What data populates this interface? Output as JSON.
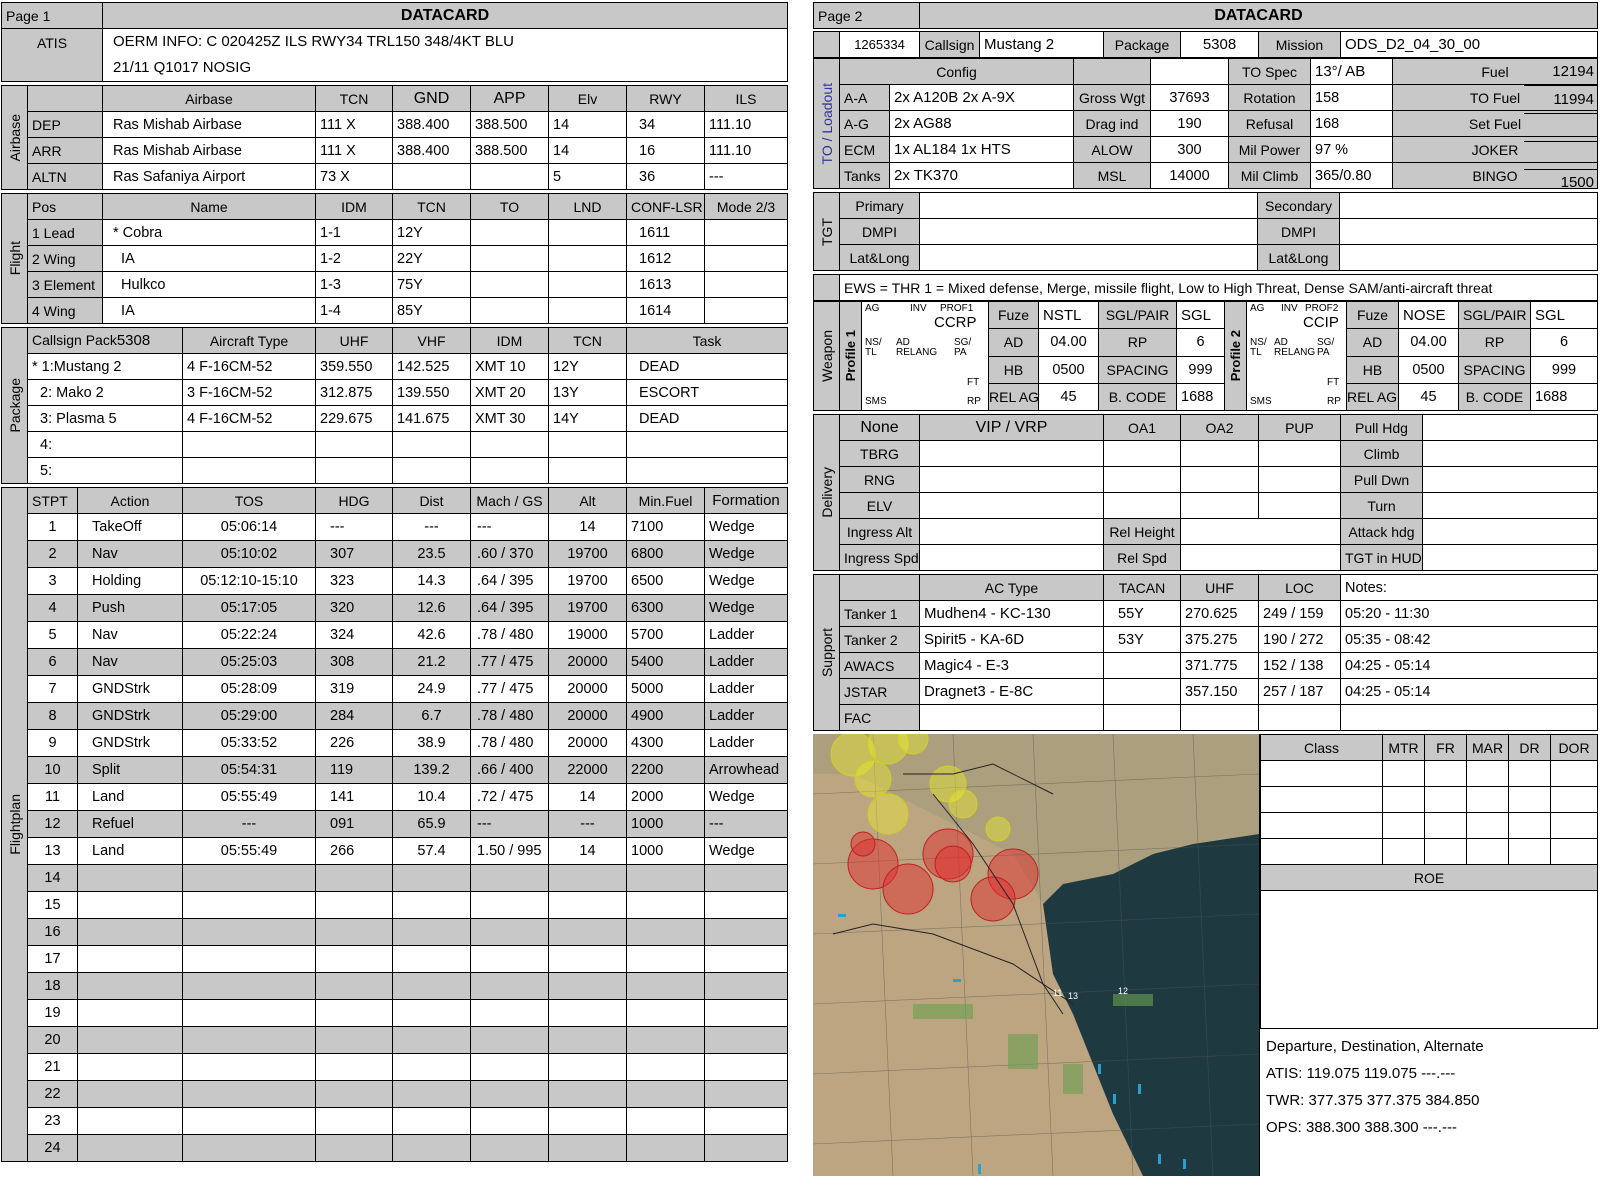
{
  "page1": {
    "page_label": "Page 1",
    "title": "DATACARD",
    "atis": {
      "label": "ATIS",
      "line1": "OERM INFO: C 020425Z ILS RWY34 TRL150 348/4KT BLU",
      "line2": "21/11 Q1017  NOSIG"
    },
    "airbase": {
      "side_label": "Airbase",
      "headers": [
        "Airbase",
        "TCN",
        "GND",
        "APP",
        "Elv",
        "RWY",
        "ILS"
      ],
      "rows": [
        [
          "DEP",
          "Ras Mishab Airbase",
          "111 X",
          "388.400",
          "388.500",
          "14",
          "34",
          "111.10"
        ],
        [
          "ARR",
          "Ras Mishab Airbase",
          "111 X",
          "388.400",
          "388.500",
          "14",
          "16",
          "111.10"
        ],
        [
          "ALTN",
          "Ras Safaniya Airport",
          "73 X",
          "",
          "",
          "5",
          "36",
          "---"
        ]
      ]
    },
    "flight": {
      "side_label": "Flight",
      "headers": [
        "Pos",
        "Name",
        "IDM",
        "TCN",
        "TO",
        "LND",
        "CONF-LSR",
        "Mode 2/3"
      ],
      "rows": [
        [
          "1 Lead",
          "* Cobra",
          "1-1",
          "12Y",
          "",
          "",
          "1611",
          ""
        ],
        [
          "2 Wing",
          "  IA",
          "1-2",
          "22Y",
          "",
          "",
          "1612",
          ""
        ],
        [
          "3 Element",
          "  Hulkco",
          "1-3",
          "75Y",
          "",
          "",
          "1613",
          ""
        ],
        [
          "4 Wing",
          "  IA",
          "1-4",
          "85Y",
          "",
          "",
          "1614",
          ""
        ]
      ]
    },
    "package": {
      "side_label": "Package",
      "callsign_pack_label": "Callsign Pack",
      "callsign_pack_value": "5308",
      "headers": [
        "Aircraft Type",
        "UHF",
        "VHF",
        "IDM",
        "TCN",
        "Task"
      ],
      "rows": [
        [
          "* 1:Mustang 2",
          "4 F-16CM-52",
          "359.550",
          "142.525",
          "XMT 10",
          "12Y",
          "DEAD"
        ],
        [
          "  2: Mako 2",
          "3 F-16CM-52",
          "312.875",
          "139.550",
          "XMT 20",
          "13Y",
          "ESCORT"
        ],
        [
          "  3: Plasma 5",
          "4 F-16CM-52",
          "229.675",
          "141.675",
          "XMT 30",
          "14Y",
          "DEAD"
        ],
        [
          "  4:",
          "",
          "",
          "",
          "",
          "",
          ""
        ],
        [
          "  5:",
          "",
          "",
          "",
          "",
          "",
          ""
        ]
      ]
    },
    "flightplan": {
      "side_label": "Flightplan",
      "headers": [
        "STPT",
        "Action",
        "TOS",
        "HDG",
        "Dist",
        "Mach / GS",
        "Alt",
        "Min.Fuel",
        "Formation"
      ],
      "rows": [
        [
          "1",
          "TakeOff",
          "05:06:14",
          "---",
          "---",
          "---",
          "14",
          "7100",
          "Wedge"
        ],
        [
          "2",
          "Nav",
          "05:10:02",
          "307",
          "23.5",
          ".60 / 370",
          "19700",
          "6800",
          "Wedge"
        ],
        [
          "3",
          "Holding",
          "05:12:10-15:10",
          "323",
          "14.3",
          ".64 / 395",
          "19700",
          "6500",
          "Wedge"
        ],
        [
          "4",
          "Push",
          "05:17:05",
          "320",
          "12.6",
          ".64 / 395",
          "19700",
          "6300",
          "Wedge"
        ],
        [
          "5",
          "Nav",
          "05:22:24",
          "324",
          "42.6",
          ".78 / 480",
          "19000",
          "5700",
          "Ladder"
        ],
        [
          "6",
          "Nav",
          "05:25:03",
          "308",
          "21.2",
          ".77 / 475",
          "20000",
          "5400",
          "Ladder"
        ],
        [
          "7",
          "GNDStrk",
          "05:28:09",
          "319",
          "24.9",
          ".77 / 475",
          "20000",
          "5000",
          "Ladder"
        ],
        [
          "8",
          "GNDStrk",
          "05:29:00",
          "284",
          "6.7",
          ".78 / 480",
          "20000",
          "4900",
          "Ladder"
        ],
        [
          "9",
          "GNDStrk",
          "05:33:52",
          "226",
          "38.9",
          ".78 / 480",
          "20000",
          "4300",
          "Ladder"
        ],
        [
          "10",
          "Split",
          "05:54:31",
          "119",
          "139.2",
          ".66 / 400",
          "22000",
          "2200",
          "Arrowhead"
        ],
        [
          "11",
          "Land",
          "05:55:49",
          "141",
          "10.4",
          ".72 / 475",
          "14",
          "2000",
          "Wedge"
        ],
        [
          "12",
          "Refuel",
          "---",
          "091",
          "65.9",
          "---",
          "---",
          "1000",
          "---"
        ],
        [
          "13",
          "Land",
          "05:55:49",
          "266",
          "57.4",
          "1.50 / 995",
          "14",
          "1000",
          "Wedge"
        ],
        [
          "14",
          "",
          "",
          "",
          "",
          "",
          "",
          "",
          ""
        ],
        [
          "15",
          "",
          "",
          "",
          "",
          "",
          "",
          "",
          ""
        ],
        [
          "16",
          "",
          "",
          "",
          "",
          "",
          "",
          "",
          ""
        ],
        [
          "17",
          "",
          "",
          "",
          "",
          "",
          "",
          "",
          ""
        ],
        [
          "18",
          "",
          "",
          "",
          "",
          "",
          "",
          "",
          ""
        ],
        [
          "19",
          "",
          "",
          "",
          "",
          "",
          "",
          "",
          ""
        ],
        [
          "20",
          "",
          "",
          "",
          "",
          "",
          "",
          "",
          ""
        ],
        [
          "21",
          "",
          "",
          "",
          "",
          "",
          "",
          "",
          ""
        ],
        [
          "22",
          "",
          "",
          "",
          "",
          "",
          "",
          "",
          ""
        ],
        [
          "23",
          "",
          "",
          "",
          "",
          "",
          "",
          "",
          ""
        ],
        [
          "24",
          "",
          "",
          "",
          "",
          "",
          "",
          "",
          ""
        ]
      ]
    }
  },
  "page2": {
    "page_label": "Page 2",
    "title": "DATACARD",
    "id": "1265334",
    "callsign_label": "Callsign",
    "callsign": "Mustang 2",
    "package_label": "Package",
    "package": "5308",
    "mission_label": "Mission",
    "mission": "ODS_D2_04_30_00",
    "loadout": {
      "side_label": "TO / Loadout",
      "config_label": "Config",
      "rows": [
        {
          "k": "A-A",
          "v": "2x A120B 2x A-9X",
          "k2": "Gross Wgt",
          "v2": "37693",
          "k3": "Rotation",
          "v3": "158",
          "k4": "TO Fuel",
          "v4": "11994"
        },
        {
          "k": "A-G",
          "v": "2x AG88",
          "k2": "Drag ind",
          "v2": "190",
          "k3": "Refusal",
          "v3": "168",
          "k4": "Set Fuel",
          "v4": ""
        },
        {
          "k": "ECM",
          "v": "1x AL184 1x HTS",
          "k2": "ALOW",
          "v2": "300",
          "k3": "Mil Power",
          "v3": "97 %",
          "k4": "JOKER",
          "v4": ""
        },
        {
          "k": "Tanks",
          "v": "2x TK370",
          "k2": "MSL",
          "v2": "14000",
          "k3": "Mil Climb",
          "v3": "365/0.80",
          "k4": "BINGO",
          "v4": "1500"
        }
      ],
      "to_spec_label": "TO Spec",
      "to_spec": "13°/ AB",
      "fuel_label": "Fuel",
      "fuel": "12194"
    },
    "tgt": {
      "side_label": "TGT",
      "rows": [
        {
          "k": "Primary",
          "k2": "Secondary"
        },
        {
          "k": "DMPI",
          "k2": "DMPI"
        },
        {
          "k": "Lat&Long",
          "k2": "Lat&Long"
        }
      ]
    },
    "ews": "EWS = THR 1 = Mixed defense, Merge, missile flight, Low to High Threat, Dense SAM/anti-aircraft threat",
    "weapon": {
      "side_label": "Weapon",
      "profiles": [
        {
          "label": "Profile 1",
          "prof": "PROF1",
          "mode": "CCRP",
          "fuze": "NSTL",
          "sgl_pair": "SGL",
          "ad": "04.00",
          "rp": "6",
          "hb": "0500",
          "spacing": "999",
          "rel_agl": "45",
          "b_code": "1688"
        },
        {
          "label": "Profile 2",
          "prof": "PROF2",
          "mode": "CCIP",
          "fuze": "NOSE",
          "sgl_pair": "SGL",
          "ad": "04.00",
          "rp": "6",
          "hb": "0500",
          "spacing": "999",
          "rel_agl": "45",
          "b_code": "1688"
        }
      ],
      "labels": {
        "fuze": "Fuze",
        "sgl_pair": "SGL/PAIR",
        "ad": "AD",
        "rp": "RP",
        "hb": "HB",
        "spacing": "SPACING",
        "rel_agl": "REL AGL",
        "b_code": "B. CODE"
      },
      "icon_labels": {
        "ag": "AG",
        "inv": "INV",
        "ns_tl": "NS/ TL",
        "ad_relang": "AD RELANG",
        "sg_pa": "SG/ PA",
        "ft": "FT",
        "sms": "SMS",
        "rp": "RP"
      }
    },
    "delivery": {
      "side_label": "Delivery",
      "none": "None",
      "vip_vrp": "VIP / VRP",
      "oa1": "OA1",
      "oa2": "OA2",
      "pup": "PUP",
      "rows": [
        "TBRG",
        "RNG",
        "ELV"
      ],
      "right_rows": [
        "Pull Hdg",
        "Climb",
        "Pull Dwn",
        "Turn",
        "Attack hdg",
        "TGT in HUD"
      ],
      "ingress_alt": "Ingress Alt",
      "ingress_spd": "Ingress Spd",
      "rel_height": "Rel Height",
      "rel_spd": "Rel Spd"
    },
    "support": {
      "side_label": "Support",
      "headers": [
        "AC Type",
        "TACAN",
        "UHF",
        "LOC",
        "Notes:"
      ],
      "rows": [
        [
          "Tanker 1",
          "Mudhen4 - KC-130",
          "55Y",
          "270.625",
          "249 / 159",
          "05:20 - 11:30"
        ],
        [
          "Tanker 2",
          "Spirit5 - KA-6D",
          "53Y",
          "375.275",
          "190 / 272",
          "05:35 - 08:42"
        ],
        [
          "AWACS",
          "Magic4 - E-3",
          "",
          "371.775",
          "152 / 138",
          "04:25 - 05:14"
        ],
        [
          "JSTAR",
          "Dragnet3 - E-8C",
          "",
          "357.150",
          "257 / 187",
          "04:25 - 05:14"
        ],
        [
          "FAC",
          "",
          "",
          "",
          "",
          ""
        ]
      ]
    },
    "threat_headers": [
      "Class",
      "MTR",
      "FR",
      "MAR",
      "DR",
      "DOR"
    ],
    "roe_label": "ROE",
    "comms": {
      "title": "Departure, Destination, Alternate",
      "atis": "ATIS: 119.075  119.075  ---.---",
      "twr": "TWR: 377.375  377.375  384.850",
      "ops": "OPS: 388.300  388.300  ---.---"
    },
    "map_labels": [
      "11",
      "13",
      "12"
    ],
    "colors": {
      "header_gray": "#c8c8c8",
      "sea": "#1e3a40",
      "land": "#bda581",
      "threat_red": "#e03030",
      "threat_yellow": "#e8e830"
    }
  }
}
